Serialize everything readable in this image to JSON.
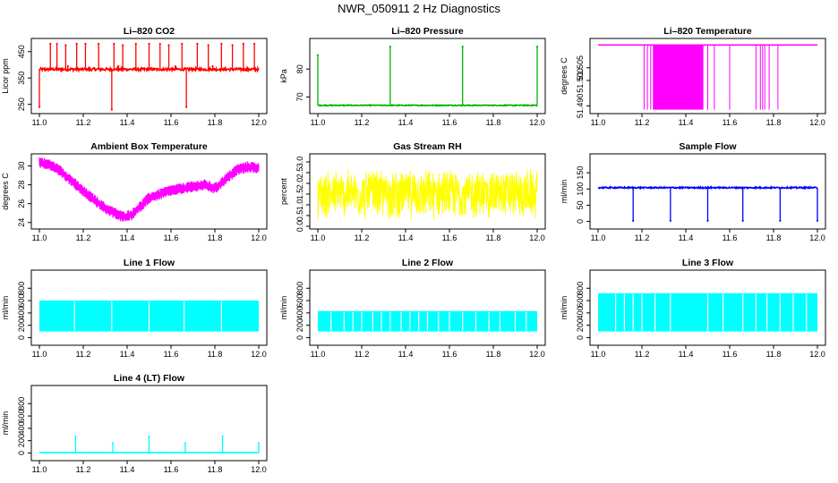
{
  "figure_title": "NWR_050911  2 Hz Diagnostics",
  "chart_data": [
    {
      "id": "co2",
      "type": "line",
      "title": "Li–820 CO2",
      "ylabel": "Licor ppm",
      "color": "#ff0000",
      "xlim": [
        11.0,
        12.0
      ],
      "ylim": [
        225,
        490
      ],
      "xticks": [
        11.0,
        11.2,
        11.4,
        11.6,
        11.8,
        12.0
      ],
      "xtick_labels": [
        "11.0",
        "11.2",
        "11.4",
        "11.6",
        "11.8",
        "12.0"
      ],
      "yticks": [
        250,
        350,
        450
      ],
      "ytick_labels": [
        "250",
        "350",
        "450"
      ],
      "pattern": "baseline_spikes",
      "baseline": 383,
      "noise": 5,
      "spikes": [
        [
          11.05,
          480
        ],
        [
          11.08,
          480
        ],
        [
          11.12,
          475
        ],
        [
          11.17,
          480
        ],
        [
          11.21,
          480
        ],
        [
          11.27,
          480
        ],
        [
          11.33,
          230
        ],
        [
          11.34,
          480
        ],
        [
          11.38,
          475
        ],
        [
          11.44,
          480
        ],
        [
          11.5,
          480
        ],
        [
          11.55,
          480
        ],
        [
          11.59,
          475
        ],
        [
          11.65,
          480
        ],
        [
          11.67,
          240
        ],
        [
          11.72,
          480
        ],
        [
          11.77,
          475
        ],
        [
          11.83,
          480
        ],
        [
          11.88,
          475
        ],
        [
          11.93,
          480
        ],
        [
          11.98,
          480
        ],
        [
          11.0,
          240
        ],
        [
          11.13,
          395
        ],
        [
          11.36,
          395
        ],
        [
          11.62,
          395
        ],
        [
          11.79,
          395
        ]
      ]
    },
    {
      "id": "pressure",
      "type": "line",
      "title": "Li–820 Pressure",
      "ylabel": "kPa",
      "color": "#00b400",
      "xlim": [
        11.0,
        12.0
      ],
      "ylim": [
        65,
        90
      ],
      "xticks": [
        11.0,
        11.2,
        11.4,
        11.6,
        11.8,
        12.0
      ],
      "xtick_labels": [
        "11.0",
        "11.2",
        "11.4",
        "11.6",
        "11.8",
        "12.0"
      ],
      "yticks": [
        70,
        80
      ],
      "ytick_labels": [
        "70",
        "80"
      ],
      "pattern": "baseline_spikes",
      "baseline": 67,
      "noise": 0.15,
      "spikes": [
        [
          11.0,
          85
        ],
        [
          11.33,
          88
        ],
        [
          11.66,
          88
        ],
        [
          12.0,
          88
        ]
      ]
    },
    {
      "id": "licor_temp",
      "type": "line",
      "title": "Li–820 Temperature",
      "ylabel": "degrees C",
      "color": "#ff00ff",
      "xlim": [
        11.0,
        12.0
      ],
      "ylim": [
        51.488,
        51.5155
      ],
      "xticks": [
        11.0,
        11.2,
        11.4,
        11.6,
        11.8,
        12.0
      ],
      "xtick_labels": [
        "11.0",
        "11.2",
        "11.4",
        "11.6",
        "11.8",
        "12.0"
      ],
      "yticks": [
        51.49,
        51.5,
        51.505
      ],
      "ytick_labels": [
        "51.490",
        "51.500",
        "51.505"
      ],
      "pattern": "temp_drops",
      "baseline": 51.514,
      "low": 51.4885,
      "drops": [
        11.21,
        11.225,
        11.24,
        11.26,
        11.28,
        11.3,
        11.5,
        11.53,
        11.6,
        11.72,
        11.74,
        11.75,
        11.76,
        11.78,
        11.82
      ],
      "dense_band": [
        11.25,
        11.48
      ]
    },
    {
      "id": "box_temp",
      "type": "line",
      "title": "Ambient Box Temperature",
      "ylabel": "degrees C",
      "color": "#ff00ff",
      "xlim": [
        11.0,
        12.0
      ],
      "ylim": [
        23.6,
        31.0
      ],
      "xticks": [
        11.0,
        11.2,
        11.4,
        11.6,
        11.8,
        12.0
      ],
      "xtick_labels": [
        "11.0",
        "11.2",
        "11.4",
        "11.6",
        "11.8",
        "12.0"
      ],
      "yticks": [
        24,
        26,
        28,
        30
      ],
      "ytick_labels": [
        "24",
        "26",
        "28",
        "30"
      ],
      "pattern": "curve_band",
      "band": 1.2,
      "curve": [
        [
          11.0,
          30.4
        ],
        [
          11.05,
          30.1
        ],
        [
          11.1,
          29.4
        ],
        [
          11.2,
          27.3
        ],
        [
          11.3,
          25.5
        ],
        [
          11.38,
          24.6
        ],
        [
          11.42,
          24.8
        ],
        [
          11.5,
          26.6
        ],
        [
          11.6,
          27.4
        ],
        [
          11.7,
          27.8
        ],
        [
          11.75,
          28.0
        ],
        [
          11.8,
          27.6
        ],
        [
          11.85,
          28.6
        ],
        [
          11.9,
          29.6
        ],
        [
          11.95,
          29.9
        ],
        [
          12.0,
          29.8
        ]
      ]
    },
    {
      "id": "rh",
      "type": "line",
      "title": "Gas Stream RH",
      "ylabel": "percent",
      "color": "#ffff00",
      "xlim": [
        11.0,
        12.0
      ],
      "ylim": [
        0,
        3.25
      ],
      "xticks": [
        11.0,
        11.2,
        11.4,
        11.6,
        11.8,
        12.0
      ],
      "xtick_labels": [
        "11.0",
        "11.2",
        "11.4",
        "11.6",
        "11.8",
        "12.0"
      ],
      "yticks": [
        0.0,
        0.5,
        1.0,
        1.5,
        2.0,
        2.5,
        3.0
      ],
      "ytick_labels": [
        "0.0",
        "0.5",
        "1.0",
        "1.5",
        "2.0",
        "2.5",
        "3.0"
      ],
      "pattern": "noise_band",
      "mid": 1.5,
      "half": 1.25,
      "max": 3.1,
      "min": 0.05
    },
    {
      "id": "sample_flow",
      "type": "line",
      "title": "Sample Flow",
      "ylabel": "ml/min",
      "color": "#0000ff",
      "xlim": [
        11.0,
        12.0
      ],
      "ylim": [
        -15,
        200
      ],
      "xticks": [
        11.0,
        11.2,
        11.4,
        11.6,
        11.8,
        12.0
      ],
      "xtick_labels": [
        "11.0",
        "11.2",
        "11.4",
        "11.6",
        "11.8",
        "12.0"
      ],
      "yticks": [
        0,
        50,
        100,
        150
      ],
      "ytick_labels": [
        "0",
        "50",
        "100",
        "150"
      ],
      "pattern": "baseline_dips",
      "baseline": 104,
      "noise": 2,
      "dips": [
        [
          11.16,
          2
        ],
        [
          11.33,
          2
        ],
        [
          11.5,
          2
        ],
        [
          11.66,
          2
        ],
        [
          11.83,
          2
        ],
        [
          12.0,
          2
        ]
      ]
    },
    {
      "id": "line1",
      "type": "line",
      "title": "Line 1 Flow",
      "ylabel": "ml/min",
      "color": "#00ffff",
      "xlim": [
        11.0,
        12.0
      ],
      "ylim": [
        -80,
        1050
      ],
      "xticks": [
        11.0,
        11.2,
        11.4,
        11.6,
        11.8,
        12.0
      ],
      "xtick_labels": [
        "11.0",
        "11.2",
        "11.4",
        "11.6",
        "11.8",
        "12.0"
      ],
      "yticks": [
        0,
        200,
        400,
        600,
        800
      ],
      "ytick_labels": [
        "0",
        "200",
        "400",
        "600",
        "800"
      ],
      "pattern": "fill_block",
      "top": 600,
      "bottom": 100,
      "gaps": [
        11.16,
        11.33,
        11.5,
        11.66,
        11.83
      ]
    },
    {
      "id": "line2",
      "type": "line",
      "title": "Line 2 Flow",
      "ylabel": "ml/min",
      "color": "#00ffff",
      "xlim": [
        11.0,
        12.0
      ],
      "ylim": [
        -80,
        1050
      ],
      "xticks": [
        11.0,
        11.2,
        11.4,
        11.6,
        11.8,
        12.0
      ],
      "xtick_labels": [
        "11.0",
        "11.2",
        "11.4",
        "11.6",
        "11.8",
        "12.0"
      ],
      "yticks": [
        0,
        200,
        400,
        600,
        800
      ],
      "ytick_labels": [
        "0",
        "200",
        "400",
        "600",
        "800"
      ],
      "pattern": "fill_block",
      "top": 430,
      "bottom": 100,
      "gaps": [
        11.06,
        11.12,
        11.16,
        11.2,
        11.25,
        11.29,
        11.33,
        11.38,
        11.42,
        11.46,
        11.5,
        11.55,
        11.6,
        11.66,
        11.72,
        11.78,
        11.83,
        11.9,
        11.95
      ]
    },
    {
      "id": "line3",
      "type": "line",
      "title": "Line 3 Flow",
      "ylabel": "ml/min",
      "color": "#00ffff",
      "xlim": [
        11.0,
        12.0
      ],
      "ylim": [
        -80,
        1050
      ],
      "xticks": [
        11.0,
        11.2,
        11.4,
        11.6,
        11.8,
        12.0
      ],
      "xtick_labels": [
        "11.0",
        "11.2",
        "11.4",
        "11.6",
        "11.8",
        "12.0"
      ],
      "yticks": [
        0,
        200,
        400,
        600,
        800
      ],
      "ytick_labels": [
        "0",
        "200",
        "400",
        "600",
        "800"
      ],
      "pattern": "fill_block",
      "top": 720,
      "bottom": 100,
      "gaps": [
        11.08,
        11.12,
        11.16,
        11.2,
        11.26,
        11.33,
        11.5,
        11.57,
        11.66,
        11.72,
        11.77,
        11.83,
        11.89,
        11.95
      ]
    },
    {
      "id": "line4",
      "type": "line",
      "title": "Line 4 (LT) Flow",
      "ylabel": "ml/min",
      "color": "#00ffff",
      "xlim": [
        11.0,
        12.0
      ],
      "ylim": [
        -80,
        1050
      ],
      "xticks": [
        11.0,
        11.2,
        11.4,
        11.6,
        11.8,
        12.0
      ],
      "xtick_labels": [
        "11.0",
        "11.2",
        "11.4",
        "11.6",
        "11.8",
        "12.0"
      ],
      "yticks": [
        0,
        200,
        400,
        600,
        800
      ],
      "ytick_labels": [
        "0",
        "200",
        "400",
        "600",
        "800"
      ],
      "pattern": "baseline_spikes",
      "baseline": 8,
      "noise": 2,
      "spikes": [
        [
          11.165,
          270
        ],
        [
          11.335,
          160
        ],
        [
          11.5,
          270
        ],
        [
          11.665,
          160
        ],
        [
          11.835,
          270
        ],
        [
          12.0,
          160
        ]
      ]
    }
  ]
}
